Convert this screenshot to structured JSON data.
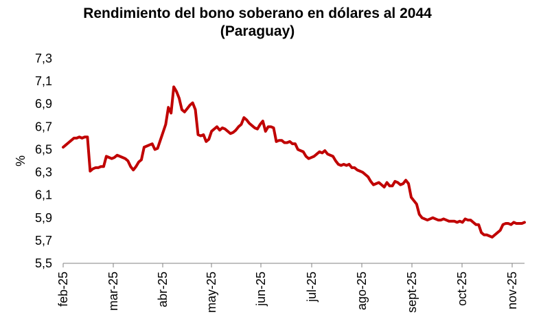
{
  "chart_data": {
    "type": "line",
    "title": "Rendimiento del bono soberano en dólares al 2044",
    "subtitle": "(Paraguay)",
    "xlabel": "",
    "ylabel": "%",
    "ylim": [
      5.5,
      7.3
    ],
    "yticks": [
      "7,3",
      "7,1",
      "6,9",
      "6,7",
      "6,5",
      "6,3",
      "6,1",
      "5,9",
      "5,7",
      "5,5"
    ],
    "xticks": [
      "feb-25",
      "mar-25",
      "abr-25",
      "may-25",
      "jun-25",
      "jul-25",
      "ago-25",
      "sept-25",
      "oct-25",
      "nov-25"
    ],
    "grid": false,
    "legend": "none",
    "line_color": "#c00000",
    "series": [
      {
        "values": [
          6.52,
          6.54,
          6.56,
          6.58,
          6.6,
          6.6,
          6.61,
          6.6,
          6.61,
          6.61,
          6.31,
          6.33,
          6.34,
          6.34,
          6.35,
          6.35,
          6.44,
          6.43,
          6.42,
          6.43,
          6.45,
          6.44,
          6.43,
          6.42,
          6.4,
          6.35,
          6.32,
          6.35,
          6.39,
          6.41,
          6.52,
          6.53,
          6.54,
          6.55,
          6.5,
          6.51,
          6.58,
          6.65,
          6.72,
          6.87,
          6.82,
          7.05,
          7.01,
          6.95,
          6.85,
          6.83,
          6.86,
          6.89,
          6.91,
          6.85,
          6.63,
          6.62,
          6.63,
          6.57,
          6.59,
          6.66,
          6.68,
          6.7,
          6.67,
          6.69,
          6.68,
          6.66,
          6.64,
          6.65,
          6.67,
          6.7,
          6.72,
          6.78,
          6.76,
          6.73,
          6.71,
          6.69,
          6.68,
          6.72,
          6.75,
          6.66,
          6.7,
          6.7,
          6.69,
          6.57,
          6.58,
          6.58,
          6.56,
          6.56,
          6.57,
          6.55,
          6.55,
          6.5,
          6.49,
          6.48,
          6.44,
          6.42,
          6.43,
          6.44,
          6.46,
          6.48,
          6.47,
          6.49,
          6.46,
          6.45,
          6.44,
          6.4,
          6.37,
          6.36,
          6.37,
          6.36,
          6.37,
          6.34,
          6.34,
          6.32,
          6.31,
          6.3,
          6.28,
          6.26,
          6.22,
          6.19,
          6.2,
          6.21,
          6.19,
          6.17,
          6.21,
          6.18,
          6.18,
          6.22,
          6.21,
          6.19,
          6.2,
          6.23,
          6.2,
          6.08,
          6.05,
          6.02,
          5.93,
          5.9,
          5.89,
          5.88,
          5.89,
          5.9,
          5.89,
          5.88,
          5.88,
          5.89,
          5.88,
          5.87,
          5.87,
          5.87,
          5.86,
          5.87,
          5.86,
          5.89,
          5.88,
          5.88,
          5.86,
          5.84,
          5.84,
          5.77,
          5.75,
          5.75,
          5.74,
          5.73,
          5.75,
          5.77,
          5.79,
          5.84,
          5.85,
          5.85,
          5.84,
          5.86,
          5.85,
          5.85,
          5.85,
          5.86
        ]
      }
    ]
  }
}
